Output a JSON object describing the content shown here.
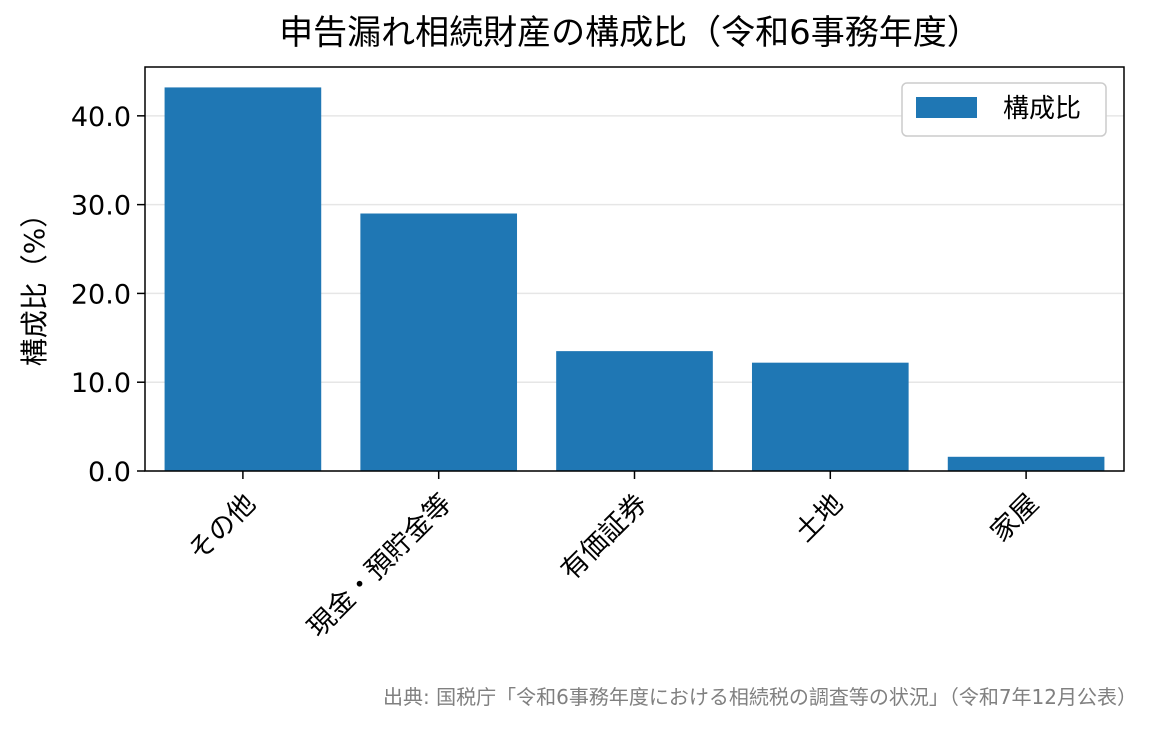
{
  "chart_data": {
    "type": "bar",
    "title": "申告漏れ相続財産の構成比（令和6事務年度）",
    "xlabel": "",
    "ylabel": "構成比（%）",
    "categories": [
      "その他",
      "現金・預貯金等",
      "有価証券",
      "土地",
      "家屋"
    ],
    "series": [
      {
        "name": "構成比",
        "values": [
          43.2,
          29.0,
          13.5,
          12.2,
          1.6
        ],
        "color": "#1f77b4"
      }
    ],
    "ylim": [
      0,
      45.5
    ],
    "yticks": [
      0,
      10,
      20,
      30,
      40
    ],
    "ytick_labels": [
      "0.0",
      "10.0",
      "20.0",
      "30.0",
      "40.0"
    ],
    "grid": "horizontal",
    "legend_position": "top-right",
    "source": "出典: 国税庁「令和6事務年度における相続税の調査等の状況」（令和7年12月公表）"
  }
}
